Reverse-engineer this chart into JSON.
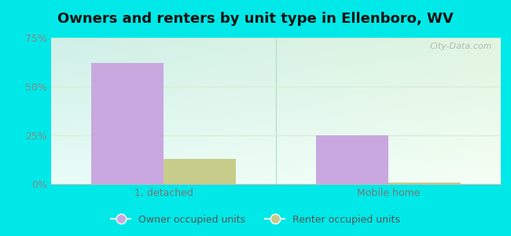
{
  "title": "Owners and renters by unit type in Ellenboro, WV",
  "categories": [
    "1, detached",
    "Mobile home"
  ],
  "owner_values": [
    62,
    25
  ],
  "renter_values": [
    13,
    1
  ],
  "owner_color": "#c9a8e0",
  "renter_color": "#c8cc8a",
  "ylim": [
    0,
    75
  ],
  "yticks": [
    0,
    25,
    50,
    75
  ],
  "yticklabels": [
    "0%",
    "25%",
    "50%",
    "75%"
  ],
  "bar_width": 0.32,
  "outer_bg": "#00e8e8",
  "plot_bg_topleft": "#cff0e8",
  "plot_bg_topright": "#e8f5e0",
  "plot_bg_bottomleft": "#e8fcf8",
  "plot_bg_bottomright": "#f5fff5",
  "legend_labels": [
    "Owner occupied units",
    "Renter occupied units"
  ],
  "watermark": "City-Data.com",
  "title_fontsize": 13,
  "tick_fontsize": 9,
  "legend_fontsize": 9,
  "grid_color": "#d8eed8",
  "divider_color": "#aaddcc"
}
